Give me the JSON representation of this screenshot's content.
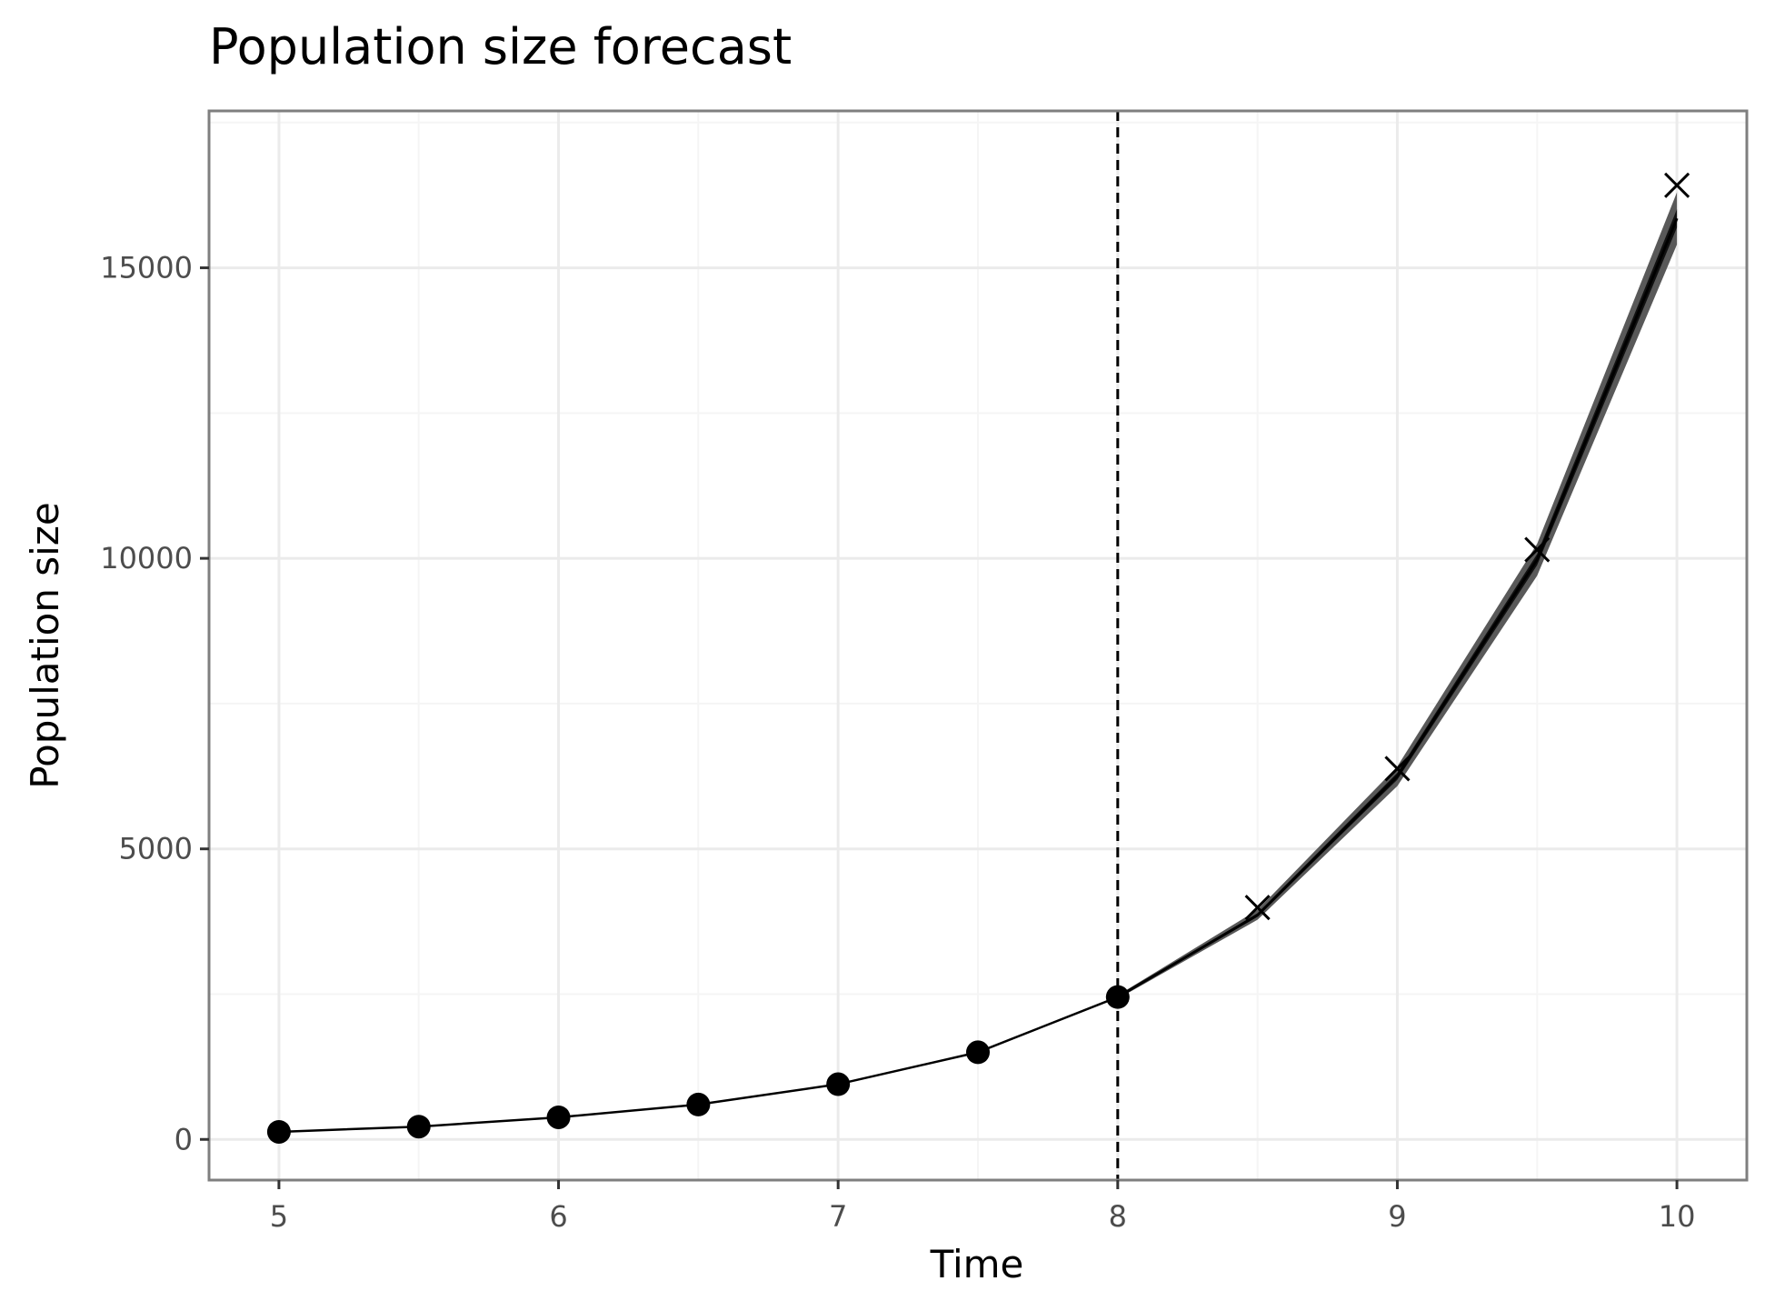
{
  "chart_data": {
    "type": "line",
    "title": "Population size forecast",
    "xlabel": "Time",
    "ylabel": "Population size",
    "xlim": [
      4.75,
      10.25
    ],
    "ylim": [
      -700,
      17700
    ],
    "x_ticks": [
      5,
      6,
      7,
      8,
      9,
      10
    ],
    "x_tick_labels": [
      "5",
      "6",
      "7",
      "8",
      "9",
      "10"
    ],
    "y_ticks": [
      0,
      5000,
      10000,
      15000
    ],
    "y_tick_labels": [
      "0",
      "5000",
      "10000",
      "15000"
    ],
    "grid": true,
    "legend": "none",
    "forecast_start": 8,
    "observed": {
      "x": [
        5,
        5.5,
        6,
        6.5,
        7,
        7.5,
        8
      ],
      "y": [
        130,
        220,
        380,
        600,
        950,
        1500,
        2450
      ]
    },
    "forecast_actual": {
      "x": [
        8.5,
        9,
        9.5,
        10
      ],
      "y": [
        3990,
        6380,
        10150,
        16420
      ]
    },
    "forecast_band": {
      "x": [
        8,
        8.5,
        9,
        9.5,
        10
      ],
      "lower": [
        2420,
        3780,
        6080,
        9700,
        15400
      ],
      "upper": [
        2480,
        3950,
        6420,
        10250,
        16300
      ],
      "median": [
        2450,
        3860,
        6250,
        9980,
        15850
      ]
    },
    "colors": {
      "point": "#000000",
      "line": "#000000",
      "band_outer": "#595959",
      "band_inner": "#111111",
      "grid_major": "#ebebeb",
      "grid_minor": "#f5f5f5",
      "panel_border": "#7f7f7f"
    }
  }
}
